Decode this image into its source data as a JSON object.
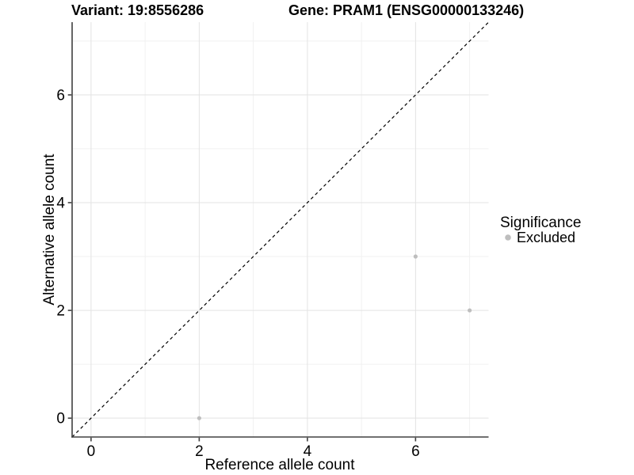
{
  "title": {
    "left": "Variant: 19:8556286",
    "right": "Gene: PRAM1 (ENSG00000133246)"
  },
  "axes": {
    "x_label": "Reference allele count",
    "y_label": "Alternative allele count"
  },
  "legend": {
    "title": "Significance",
    "items": [
      {
        "label": "Excluded",
        "color": "#bebebe"
      }
    ]
  },
  "chart_data": {
    "type": "scatter",
    "title": "Variant: 19:8556286   Gene: PRAM1 (ENSG00000133246)",
    "xlabel": "Reference allele count",
    "ylabel": "Alternative allele count",
    "xlim": [
      -0.35,
      7.35
    ],
    "ylim": [
      -0.35,
      7.35
    ],
    "xticks": [
      0,
      2,
      4,
      6
    ],
    "yticks": [
      0,
      2,
      4,
      6
    ],
    "xminor": [
      1,
      3,
      5,
      7
    ],
    "yminor": [
      1,
      3,
      5,
      7
    ],
    "grid": "major and minor, light gray on white",
    "legend_position": "right",
    "reference_line": {
      "type": "identity",
      "equation": "y = x",
      "style": "dashed",
      "color": "#000000",
      "from": -0.35,
      "to": 7.35
    },
    "series": [
      {
        "name": "Excluded",
        "marker": "circle",
        "color": "#bebebe",
        "points": [
          [
            2,
            0
          ],
          [
            6,
            3
          ],
          [
            7,
            2
          ]
        ]
      }
    ]
  },
  "colors": {
    "background": "#ffffff",
    "grid_major": "#e3e3e3",
    "grid_minor": "#f1f1f1",
    "axis_line": "#404040",
    "point": "#bebebe",
    "text": "#000000",
    "reference_line": "#000000"
  }
}
